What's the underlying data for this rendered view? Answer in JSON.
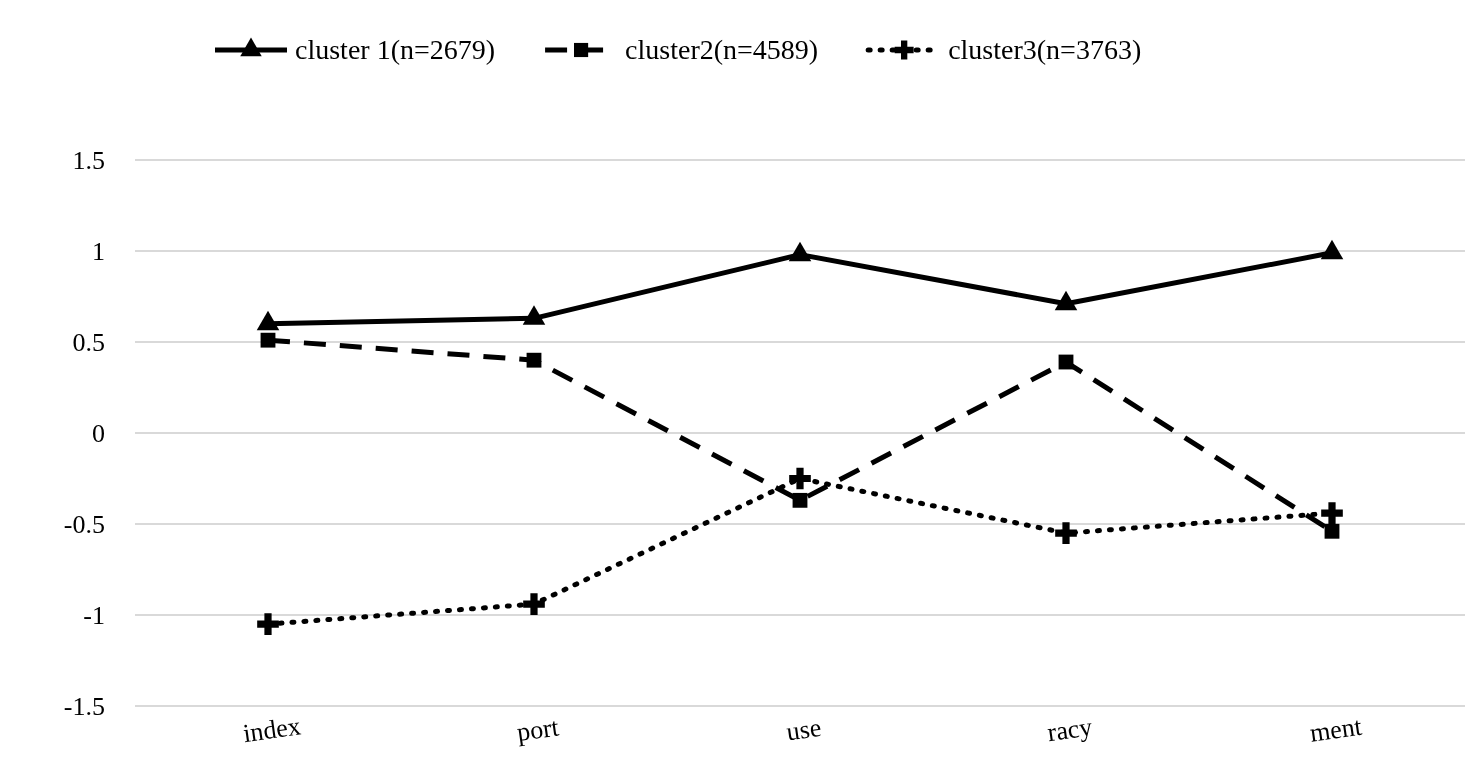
{
  "chart_data": {
    "type": "line",
    "categories": [
      "index",
      "port",
      "use",
      "racy",
      "ment"
    ],
    "series": [
      {
        "name": "cluster 1(n=2679)",
        "color": "#000000",
        "marker": "triangle",
        "line_style": "solid",
        "values": [
          0.6,
          0.63,
          0.98,
          0.71,
          0.99
        ]
      },
      {
        "name": "cluster2(n=4589)",
        "color": "#000000",
        "marker": "square",
        "line_style": "dashed",
        "values": [
          0.51,
          0.4,
          -0.37,
          0.39,
          -0.54
        ]
      },
      {
        "name": "cluster3(n=3763)",
        "color": "#000000",
        "marker": "cross",
        "line_style": "dotted",
        "values": [
          -1.05,
          -0.94,
          -0.25,
          -0.55,
          -0.44
        ]
      }
    ],
    "ylim": [
      -1.5,
      1.5
    ],
    "yticks": [
      -1.5,
      -1,
      -0.5,
      0,
      0.5,
      1,
      1.5
    ],
    "grid": "y",
    "legend": "top"
  }
}
